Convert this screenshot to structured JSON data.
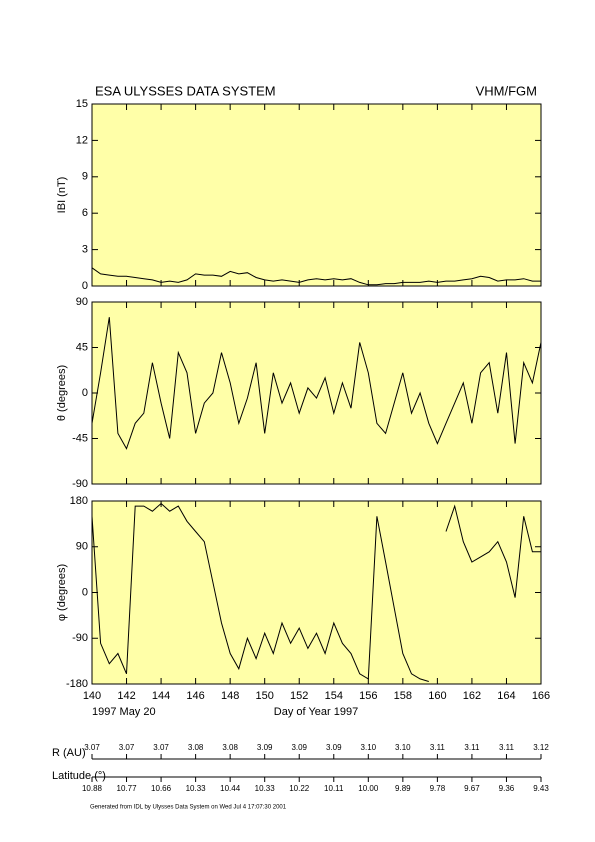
{
  "header": {
    "title": "ESA ULYSSES DATA SYSTEM",
    "instrument": "VHM/FGM"
  },
  "x_axis": {
    "xlabel": "Day of Year 1997",
    "date_label": "1997 May 20"
  },
  "chart_data": [
    {
      "type": "line",
      "ylabel": "IBI (nT)",
      "color": "#000000",
      "ylim": [
        0,
        15
      ],
      "yticks": [
        0,
        3,
        6,
        9,
        12,
        15
      ],
      "xlim": [
        140,
        166
      ],
      "xticks": [
        140,
        142,
        144,
        146,
        148,
        150,
        152,
        154,
        156,
        158,
        160,
        162,
        164,
        166
      ],
      "x": [
        140,
        140.5,
        141,
        141.5,
        142,
        142.5,
        143,
        143.5,
        144,
        144.5,
        145,
        145.5,
        146,
        146.5,
        147,
        147.5,
        148,
        148.5,
        149,
        149.5,
        150,
        150.5,
        151,
        151.5,
        152,
        152.5,
        153,
        153.5,
        154,
        154.5,
        155,
        155.5,
        156,
        156.5,
        157,
        157.5,
        158,
        158.5,
        159,
        159.5,
        160,
        160.5,
        161,
        161.5,
        162,
        162.5,
        163,
        163.5,
        164,
        164.5,
        165,
        165.5,
        166
      ],
      "values": [
        1.5,
        1.0,
        0.9,
        0.8,
        0.8,
        0.7,
        0.6,
        0.5,
        0.3,
        0.4,
        0.3,
        0.5,
        1.0,
        0.9,
        0.9,
        0.8,
        1.2,
        1.0,
        1.1,
        0.7,
        0.5,
        0.4,
        0.5,
        0.4,
        0.3,
        0.5,
        0.6,
        0.5,
        0.6,
        0.5,
        0.6,
        0.3,
        0.1,
        0.1,
        0.2,
        0.2,
        0.3,
        0.3,
        0.3,
        0.4,
        0.3,
        0.4,
        0.4,
        0.5,
        0.6,
        0.8,
        0.7,
        0.4,
        0.5,
        0.5,
        0.6,
        0.4,
        0.4
      ]
    },
    {
      "type": "line",
      "ylabel": "θ (degrees)",
      "color": "#000000",
      "ylim": [
        -90,
        90
      ],
      "yticks": [
        -90,
        -45,
        0,
        45,
        90
      ],
      "xlim": [
        140,
        166
      ],
      "xticks": [
        140,
        142,
        144,
        146,
        148,
        150,
        152,
        154,
        156,
        158,
        160,
        162,
        164,
        166
      ],
      "x": [
        140,
        140.5,
        141,
        141.5,
        142,
        142.5,
        143,
        143.5,
        144,
        144.5,
        145,
        145.5,
        146,
        146.5,
        147,
        147.5,
        148,
        148.5,
        149,
        149.5,
        150,
        150.5,
        151,
        151.5,
        152,
        152.5,
        153,
        153.5,
        154,
        154.5,
        155,
        155.5,
        156,
        156.5,
        157,
        157.5,
        158,
        158.5,
        159,
        159.5,
        160,
        160.5,
        161,
        161.5,
        162,
        162.5,
        163,
        163.5,
        164,
        164.5,
        165,
        165.5,
        166
      ],
      "values": [
        -30,
        20,
        75,
        -40,
        -55,
        -30,
        -20,
        30,
        -10,
        -45,
        40,
        20,
        -40,
        -10,
        0,
        40,
        10,
        -30,
        -5,
        30,
        -40,
        20,
        -10,
        10,
        -20,
        5,
        -5,
        15,
        -20,
        10,
        -15,
        50,
        20,
        -30,
        -40,
        -10,
        20,
        -20,
        0,
        -30,
        -50,
        -30,
        -10,
        10,
        -30,
        20,
        30,
        -20,
        40,
        -50,
        30,
        10,
        50
      ]
    },
    {
      "type": "line",
      "ylabel": "φ (degrees)",
      "color": "#000000",
      "ylim": [
        -180,
        180
      ],
      "yticks": [
        -180,
        -90,
        0,
        90,
        180
      ],
      "xlim": [
        140,
        166
      ],
      "xticks": [
        140,
        142,
        144,
        146,
        148,
        150,
        152,
        154,
        156,
        158,
        160,
        162,
        164,
        166
      ],
      "x": [
        140,
        140.5,
        141,
        141.5,
        142,
        142.5,
        143,
        143.5,
        144,
        144.5,
        145,
        145.5,
        146,
        146.5,
        147,
        147.5,
        148,
        148.5,
        149,
        149.5,
        150,
        150.5,
        151,
        151.5,
        152,
        152.5,
        153,
        153.5,
        154,
        154.5,
        155,
        155.5,
        156,
        156.5,
        157,
        157.5,
        158,
        158.5,
        159,
        159.5,
        160,
        160.5,
        161,
        161.5,
        162,
        162.5,
        163,
        163.5,
        164,
        164.5,
        165,
        165.5,
        166
      ],
      "values": [
        150,
        -100,
        -140,
        -120,
        -160,
        170,
        170,
        160,
        175,
        160,
        170,
        140,
        120,
        100,
        20,
        -60,
        -120,
        -150,
        -90,
        -130,
        -80,
        -120,
        -60,
        -100,
        -70,
        -110,
        -80,
        -120,
        -60,
        -100,
        -120,
        -160,
        -170,
        150,
        60,
        -30,
        -120,
        -160,
        -170,
        -175,
        null,
        120,
        170,
        100,
        60,
        70,
        80,
        100,
        60,
        -10,
        150,
        80,
        80
      ]
    }
  ],
  "orbit": {
    "r_label": "R (AU)",
    "r_values": [
      "3.07",
      "3.07",
      "3.07",
      "3.08",
      "3.08",
      "3.09",
      "3.09",
      "3.09",
      "3.10",
      "3.10",
      "3.11",
      "3.11",
      "3.11",
      "3.12"
    ],
    "lat_label": "Latitude (°)",
    "lat_values": [
      "10.88",
      "10.77",
      "10.66",
      "10.33",
      "10.44",
      "10.33",
      "10.22",
      "10.11",
      "10.00",
      "9.89",
      "9.78",
      "9.67",
      "9.36",
      "9.43"
    ]
  },
  "footer": "Generated from IDL by Ulysses Data System on Wed Jul  4 17:07:30 2001"
}
